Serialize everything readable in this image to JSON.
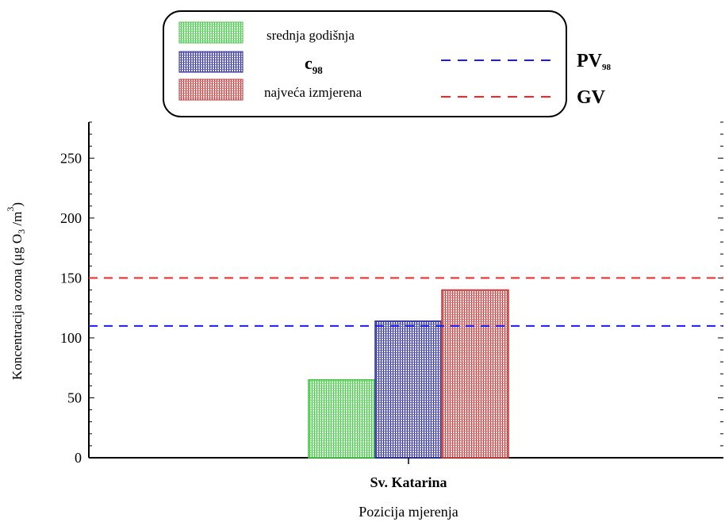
{
  "chart_data": {
    "type": "bar",
    "categories": [
      "Sv. Katarina"
    ],
    "series": [
      {
        "name": "srednja godišnja",
        "values": [
          65
        ],
        "color": "#3cc83c"
      },
      {
        "name": "c98",
        "values": [
          114
        ],
        "color": "#28289a"
      },
      {
        "name": "najveća izmjerena",
        "values": [
          140
        ],
        "color": "#c83232"
      }
    ],
    "reference_lines": [
      {
        "name": "PV98",
        "value": 110,
        "color": "#1a1aff",
        "style": "dashed"
      },
      {
        "name": "GV",
        "value": 150,
        "color": "#ff2222",
        "style": "dashed"
      }
    ],
    "legend": {
      "placement": "top",
      "items": [
        {
          "key": "srednja godišnja",
          "text": "srednja godišnja",
          "kind": "bar",
          "color": "#3cc83c"
        },
        {
          "key": "c98",
          "text": "c",
          "sub": "98",
          "kind": "bar",
          "color": "#28289a"
        },
        {
          "key": "najveća izmjerena",
          "text": "najveća izmjerena",
          "kind": "bar",
          "color": "#c83232"
        },
        {
          "key": "PV98",
          "text": "PV",
          "sub": "98",
          "kind": "line",
          "color": "#1a1aff"
        },
        {
          "key": "GV",
          "text": "GV",
          "kind": "line",
          "color": "#ff2222"
        }
      ]
    },
    "ylabel": "Koncentracija ozona (μg O3 /m3)",
    "xlabel": "Pozicija mjerenja",
    "ylim": [
      0,
      280
    ],
    "yticks": [
      0,
      50,
      100,
      150,
      200,
      250
    ],
    "grid": false
  }
}
